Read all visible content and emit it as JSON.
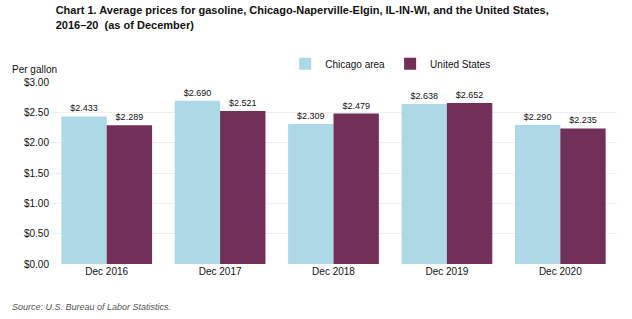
{
  "chart_data": {
    "type": "bar",
    "title": "Chart 1. Average prices for gasoline, Chicago-Naperville-Elgin, IL-IN-WI, and the United States,",
    "subtitle": "2016–20  (as of December)",
    "ylabel": "Per gallon",
    "source": "Source: U.S. Bureau of Labor Statistics.",
    "categories": [
      "Dec 2016",
      "Dec 2017",
      "Dec 2018",
      "Dec 2019",
      "Dec 2020"
    ],
    "series": [
      {
        "name": "Chicago area",
        "color": "#add8e6",
        "values": [
          2.433,
          2.69,
          2.309,
          2.638,
          2.29
        ],
        "value_labels": [
          "$2.433",
          "$2.690",
          "$2.309",
          "$2.638",
          "$2.290"
        ]
      },
      {
        "name": "United States",
        "color": "#722f57",
        "values": [
          2.289,
          2.521,
          2.479,
          2.652,
          2.235
        ],
        "value_labels": [
          "$2.289",
          "$2.521",
          "$2.479",
          "$2.652",
          "$2.235"
        ]
      }
    ],
    "ylim": [
      0,
      3.0
    ],
    "yticks": [
      {
        "value": 0.0,
        "label": "$0.00"
      },
      {
        "value": 0.5,
        "label": "$0.50"
      },
      {
        "value": 1.0,
        "label": "$1.00"
      },
      {
        "value": 1.5,
        "label": "$1.50"
      },
      {
        "value": 2.0,
        "label": "$2.00"
      },
      {
        "value": 2.5,
        "label": "$2.50"
      },
      {
        "value": 3.0,
        "label": "$3.00"
      }
    ],
    "grid": true,
    "legend": "top",
    "data_labels": true
  }
}
